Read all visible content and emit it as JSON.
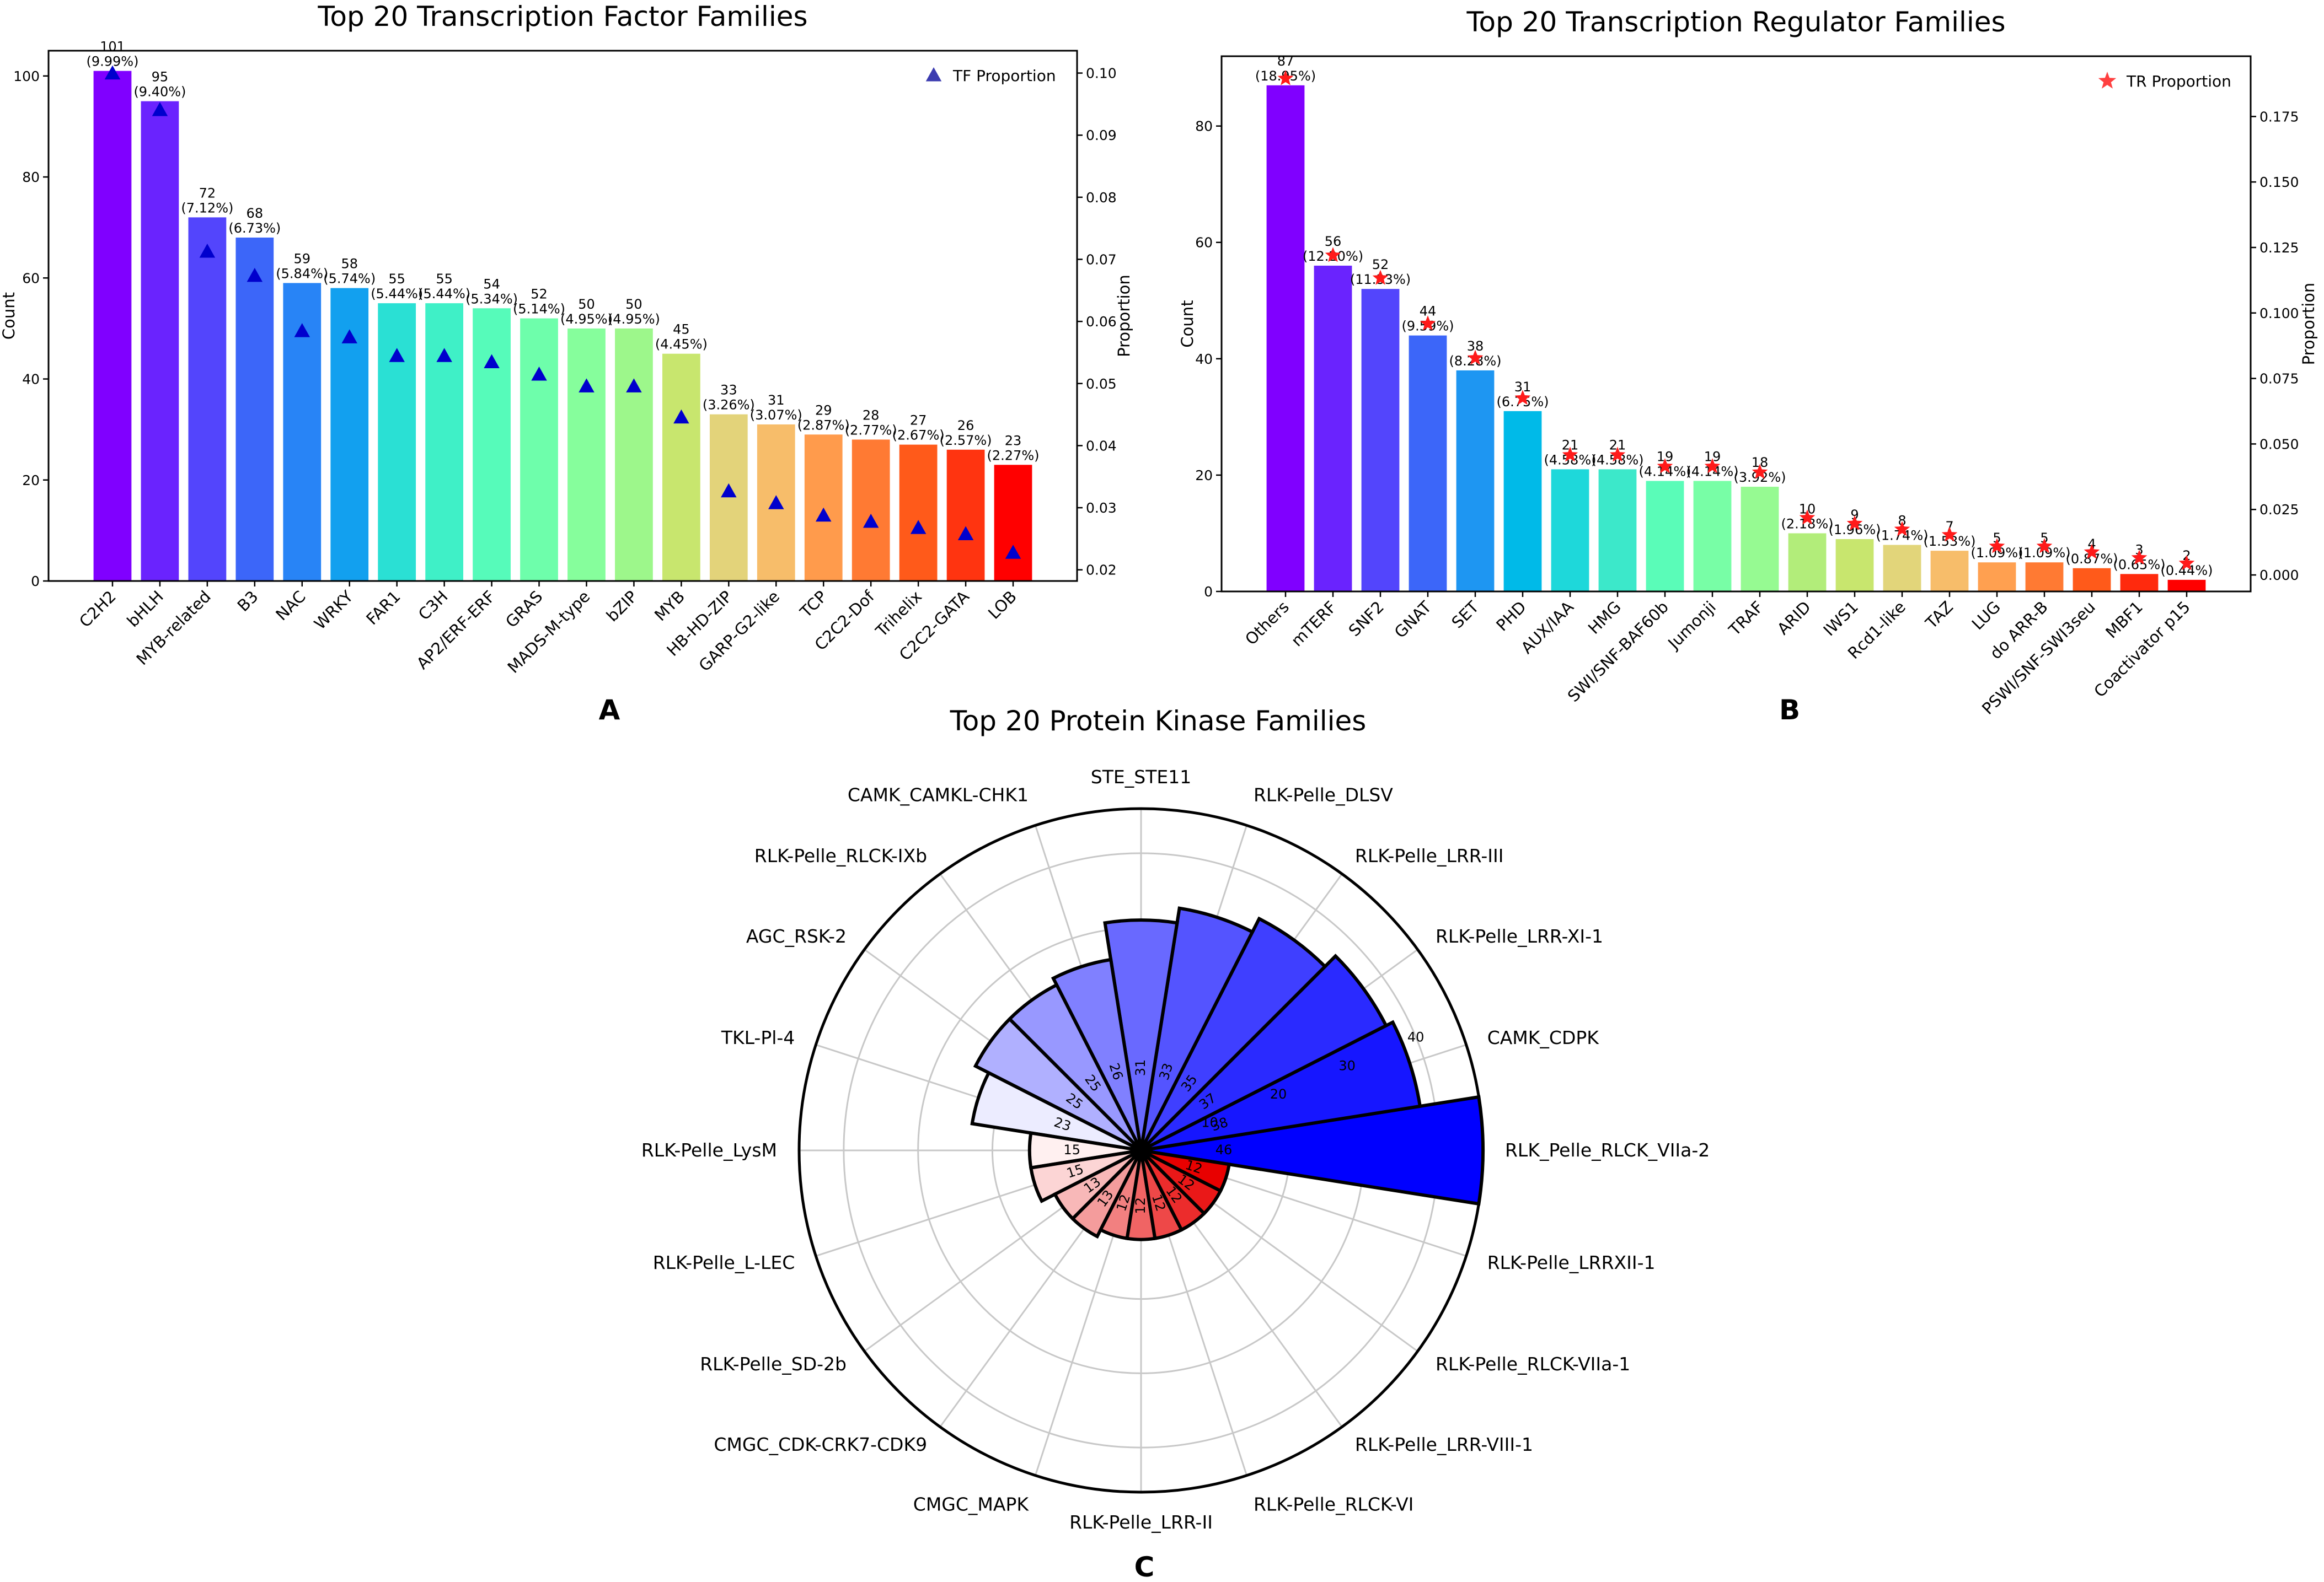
{
  "chart_data": [
    {
      "panel": "A",
      "type": "bar",
      "title": "Top 20 Transcription Factor Families",
      "xlabel": "",
      "ylabel": "Count",
      "y2label": "Proportion",
      "ylim": [
        0,
        105
      ],
      "yticks": [
        0,
        20,
        40,
        60,
        80,
        100
      ],
      "y2lim": [
        0.0182,
        0.1036
      ],
      "y2ticks": [
        0.02,
        0.03,
        0.04,
        0.05,
        0.06,
        0.07,
        0.08,
        0.09,
        0.1
      ],
      "y2ticklabels": [
        "0.02",
        "0.03",
        "0.04",
        "0.05",
        "0.06",
        "0.07",
        "0.08",
        "0.09",
        "0.10"
      ],
      "legend": {
        "label": "TF Proportion",
        "position": "top-right",
        "marker": "triangle",
        "color": "#0000cd"
      },
      "categories": [
        "C2H2",
        "bHLH",
        "MYB-related",
        "B3",
        "NAC",
        "WRKY",
        "FAR1",
        "C3H",
        "AP2/ERF-ERF",
        "GRAS",
        "MADS-M-type",
        "bZIP",
        "MYB",
        "HB-HD-ZIP",
        "GARP-G2-like",
        "TCP",
        "C2C2-Dof",
        "Trihelix",
        "C2C2-GATA",
        "LOB"
      ],
      "values": [
        101,
        95,
        72,
        68,
        59,
        58,
        55,
        55,
        54,
        52,
        50,
        50,
        45,
        33,
        31,
        29,
        28,
        27,
        26,
        23
      ],
      "percent_labels": [
        "(9.99%)",
        "(9.40%)",
        "(7.12%)",
        "(6.73%)",
        "(5.84%)",
        "(5.74%)",
        "(5.44%)",
        "(5.44%)",
        "(5.34%)",
        "(5.14%)",
        "(4.95%)",
        "(4.95%)",
        "(4.45%)",
        "(3.26%)",
        "(3.07%)",
        "(2.87%)",
        "(2.77%)",
        "(2.67%)",
        "(2.57%)",
        "(2.27%)"
      ],
      "proportion": [
        0.0999,
        0.094,
        0.0712,
        0.0673,
        0.0584,
        0.0574,
        0.0544,
        0.0544,
        0.0534,
        0.0514,
        0.0495,
        0.0495,
        0.0445,
        0.0326,
        0.0307,
        0.0287,
        0.0277,
        0.0267,
        0.0257,
        0.0227
      ],
      "colors": [
        "#8000ff",
        "#6a23fe",
        "#5345fc",
        "#3c66f9",
        "#2884f6",
        "#12a0ef",
        "#00bae8",
        "#14cfde",
        "#2ae0d4",
        "#3ff0c7",
        "#56fbba",
        "#6efeab",
        "#86fe9c",
        "#9df78b",
        "#b2ed7a",
        "#c7de69",
        "#dccc57",
        "#eeb545",
        "#ff9b33",
        "#ff7e20",
        "#ff5f0f",
        "#ff3f00",
        "#ff1d00",
        "#ff0000"
      ],
      "bar_colors": [
        "#8000ff",
        "#6a23fe",
        "#5345fc",
        "#3c66f9",
        "#2884f6",
        "#12a0ef",
        "#2ae0d4",
        "#3ff0c7",
        "#56fbba",
        "#6efeab",
        "#86fe9c",
        "#9df78b",
        "#c8e66e",
        "#e3d37a",
        "#f7bd6a",
        "#ff9b4c",
        "#ff7a33",
        "#ff5a1a",
        "#ff3410",
        "#ff0000"
      ]
    },
    {
      "panel": "B",
      "type": "bar",
      "title": "Top 20 Transcription Regulator Families",
      "xlabel": "",
      "ylabel": "Count",
      "y2label": "Proportion",
      "ylim": [
        0,
        92
      ],
      "yticks": [
        0,
        20,
        40,
        60,
        80
      ],
      "y2lim": [
        -0.0063,
        0.198
      ],
      "y2ticks": [
        0.0,
        0.025,
        0.05,
        0.075,
        0.1,
        0.125,
        0.15,
        0.175
      ],
      "y2ticklabels": [
        "0.000",
        "0.025",
        "0.050",
        "0.075",
        "0.100",
        "0.125",
        "0.150",
        "0.175"
      ],
      "legend": {
        "label": "TR Proportion",
        "position": "top-right",
        "marker": "star",
        "color": "#ff0000"
      },
      "categories": [
        "Others",
        "mTERF",
        "SNF2",
        "GNAT",
        "SET",
        "PHD",
        "AUX/IAA",
        "HMG",
        "SWI/SNF-BAF60b",
        "Jumonji",
        "TRAF",
        "ARID",
        "IWS1",
        "Rcd1-like",
        "TAZ",
        "LUG",
        "do ARR-B",
        "PSWI/SNF-SWI3seu",
        "MBF1",
        "Coactivator p15"
      ],
      "values": [
        87,
        56,
        52,
        44,
        38,
        31,
        21,
        21,
        19,
        19,
        18,
        10,
        9,
        8,
        7,
        5,
        5,
        4,
        3,
        2
      ],
      "percent_labels": [
        "(18.95%)",
        "(12.20%)",
        "(11.33%)",
        "(9.59%)",
        "(8.28%)",
        "(6.75%)",
        "(4.58%)",
        "(4.58%)",
        "(4.14%)",
        "(4.14%)",
        "(3.92%)",
        "(2.18%)",
        "(1.96%)",
        "(1.74%)",
        "(1.53%)",
        "(1.09%)",
        "(1.09%)",
        "(0.87%)",
        "(0.65%)",
        "(0.44%)"
      ],
      "proportion": [
        0.1895,
        0.122,
        0.1133,
        0.0959,
        0.0828,
        0.0675,
        0.0458,
        0.0458,
        0.0414,
        0.0414,
        0.0392,
        0.0218,
        0.0196,
        0.0174,
        0.0153,
        0.0109,
        0.0109,
        0.0087,
        0.0065,
        0.0044
      ],
      "bar_colors": [
        "#8000ff",
        "#6a23fe",
        "#5345fc",
        "#3c66f9",
        "#1e96f2",
        "#00bae8",
        "#1ed8da",
        "#3ce8ca",
        "#5afcb8",
        "#78fea6",
        "#96fa92",
        "#b2ed7a",
        "#c8e66e",
        "#e2d57a",
        "#f7bd6a",
        "#ffa050",
        "#ff7a33",
        "#ff5a1a",
        "#ff2a0d",
        "#ff0000"
      ]
    },
    {
      "panel": "C",
      "type": "polar_bar",
      "title": "Top 20 Protein Kinase Families",
      "radial_ticks": [
        10,
        20,
        30,
        40
      ],
      "rlim": [
        0,
        46
      ],
      "categories": [
        "RLK_Pelle_RLCK_VIIa-2",
        "CAMK_CDPK",
        "RLK-Pelle_LRR-XI-1",
        "RLK-Pelle_LRR-III",
        "RLK-Pelle_DLSV",
        "STE_STE11",
        "CAMK_CAMKL-CHK1",
        "RLK-Pelle_RLCK-IXb",
        "AGC_RSK-2",
        "TKL-Pl-4",
        "RLK-Pelle_LysM",
        "RLK-Pelle_L-LEC",
        "RLK-Pelle_SD-2b",
        "CMGC_CDK-CRK7-CDK9",
        "CMGC_MAPK",
        "RLK-Pelle_LRR-II",
        "RLK-Pelle_RLCK-VI",
        "RLK-Pelle_LRR-VIII-1",
        "RLK-Pelle_RLCK-VIIa-1",
        "RLK-Pelle_LRRXII-1"
      ],
      "values": [
        46,
        38,
        37,
        35,
        33,
        31,
        26,
        25,
        25,
        23,
        15,
        15,
        13,
        13,
        12,
        12,
        12,
        12,
        12,
        12
      ],
      "value_labels": [
        "46",
        "38",
        "37",
        "35",
        "33",
        "31",
        "26",
        "25",
        "25",
        "23",
        "15",
        "15",
        "13",
        "13",
        "12",
        "12",
        "12",
        "12",
        "12",
        "12"
      ],
      "colors": [
        "#0000ff",
        "#1616ff",
        "#2a2aff",
        "#3f3fff",
        "#5454ff",
        "#6969ff",
        "#8080ff",
        "#9898ff",
        "#b0b0ff",
        "#ececff",
        "#fff0f0",
        "#fcd5d5",
        "#f8b8b8",
        "#f49c9c",
        "#f28080",
        "#f06464",
        "#ee4848",
        "#ec2c2c",
        "#ea1818",
        "#e80000"
      ]
    }
  ],
  "panel_letters": [
    "A",
    "B",
    "C"
  ]
}
